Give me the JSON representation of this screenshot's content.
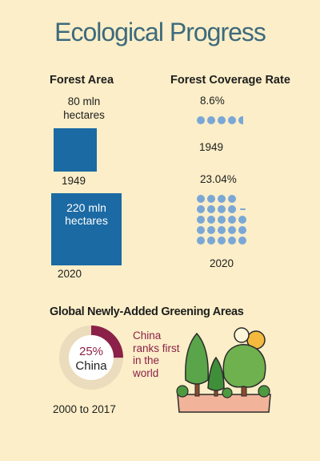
{
  "title": "Ecological Progress",
  "forest_area": {
    "heading": "Forest Area",
    "y1949": {
      "value": "80 mln hectares",
      "line1": "80 mln",
      "line2": "hectares",
      "year": "1949"
    },
    "y2020": {
      "value": "220 mln hectares",
      "line1": "220 mln",
      "line2": "hectares",
      "year": "2020"
    }
  },
  "coverage": {
    "heading": "Forest Coverage Rate",
    "y1949": {
      "rate": "8.6%",
      "year": "1949"
    },
    "y2020": {
      "rate": "23.04%",
      "year": "2020"
    }
  },
  "greening": {
    "heading": "Global Newly-Added Greening Areas",
    "share": "25%",
    "share_fraction": 0.25,
    "country": "China",
    "note_lines": [
      "China",
      "ranks first",
      "in the",
      "world"
    ],
    "period": "2000 to 2017"
  },
  "colors": {
    "background": "#fbeec8",
    "title": "#3d6a7c",
    "bar": "#1b6aa3",
    "dot": "#7aa7d6",
    "accent": "#8b2148",
    "ring": "#eadcbc"
  }
}
